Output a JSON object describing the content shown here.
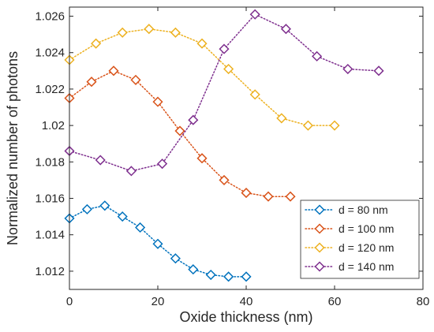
{
  "chart_data": {
    "type": "line",
    "title": "",
    "xlabel": "Oxide thickness (nm)",
    "ylabel": "Normalized number of photons",
    "xlim": [
      0,
      80
    ],
    "ylim": [
      1.011,
      1.0265
    ],
    "xticks": [
      0,
      20,
      40,
      60,
      80
    ],
    "xtick_labels": [
      "0",
      "20",
      "40",
      "60",
      "80"
    ],
    "yticks": [
      1.012,
      1.014,
      1.016,
      1.018,
      1.02,
      1.022,
      1.024,
      1.026
    ],
    "ytick_labels": [
      "1.012",
      "1.014",
      "1.016",
      "1.018",
      "1.02",
      "1.022",
      "1.024",
      "1.026"
    ],
    "grid": false,
    "legend_position": "bottom-right",
    "marker": "diamond",
    "line_style": "dotted",
    "series": [
      {
        "name": "d = 80 nm",
        "color": "#0072BD",
        "x": [
          0,
          4,
          8,
          12,
          16,
          20,
          24,
          28,
          32,
          36,
          40
        ],
        "y": [
          1.0149,
          1.0154,
          1.0156,
          1.015,
          1.0144,
          1.0135,
          1.0127,
          1.0121,
          1.0118,
          1.0117,
          1.0117
        ]
      },
      {
        "name": "d = 100 nm",
        "color": "#D95319",
        "x": [
          0,
          5,
          10,
          15,
          20,
          25,
          30,
          35,
          40,
          45,
          50
        ],
        "y": [
          1.0215,
          1.0224,
          1.023,
          1.0225,
          1.0213,
          1.0197,
          1.0182,
          1.017,
          1.0163,
          1.0161,
          1.0161
        ]
      },
      {
        "name": "d = 120 nm",
        "color": "#EDB120",
        "x": [
          0,
          6,
          12,
          18,
          24,
          30,
          36,
          42,
          48,
          54,
          60
        ],
        "y": [
          1.0236,
          1.0245,
          1.0251,
          1.0253,
          1.0251,
          1.0245,
          1.0231,
          1.0217,
          1.0204,
          1.02,
          1.02
        ]
      },
      {
        "name": "d = 140 nm",
        "color": "#7E2F8E",
        "x": [
          0,
          7,
          14,
          21,
          28,
          35,
          42,
          49,
          56,
          63,
          70
        ],
        "y": [
          1.0186,
          1.0181,
          1.0175,
          1.0179,
          1.0203,
          1.0242,
          1.0261,
          1.0253,
          1.0238,
          1.0231,
          1.023
        ]
      }
    ]
  }
}
